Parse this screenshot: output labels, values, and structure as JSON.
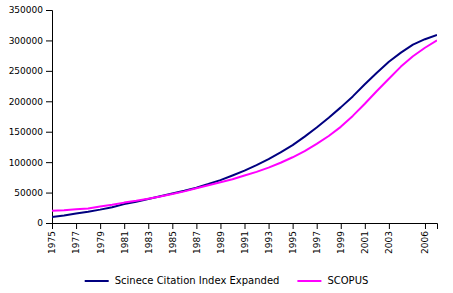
{
  "chart_data": {
    "type": "line",
    "x": [
      1975,
      1976,
      1977,
      1978,
      1979,
      1980,
      1981,
      1982,
      1983,
      1984,
      1985,
      1986,
      1987,
      1988,
      1989,
      1990,
      1991,
      1992,
      1993,
      1994,
      1995,
      1996,
      1997,
      1998,
      1999,
      2000,
      2001,
      2002,
      2003,
      2004,
      2005,
      2006,
      2007
    ],
    "series": [
      {
        "name": "Scinece Citation Index Expanded",
        "color": "#000080",
        "values": [
          10000,
          12500,
          15500,
          18500,
          22000,
          26000,
          31000,
          35000,
          39500,
          44000,
          48500,
          53000,
          58000,
          64000,
          70500,
          78000,
          86000,
          95000,
          105000,
          116000,
          128000,
          142000,
          157000,
          173000,
          190000,
          208000,
          228000,
          247000,
          265000,
          280000,
          293000,
          302000,
          309000
        ]
      },
      {
        "name": "SCOPUS",
        "color": "#FF00FF",
        "values": [
          20000,
          21000,
          22500,
          24000,
          27000,
          30000,
          33500,
          36500,
          40000,
          43500,
          47500,
          52000,
          57000,
          62000,
          67000,
          72000,
          78000,
          84000,
          91000,
          99000,
          108000,
          118000,
          130000,
          143000,
          158000,
          176000,
          196000,
          217000,
          237000,
          257000,
          274000,
          288000,
          300000
        ]
      }
    ],
    "xlim": [
      1975,
      2007
    ],
    "xticks": [
      1975,
      1977,
      1979,
      1981,
      1983,
      1985,
      1987,
      1989,
      1991,
      1993,
      1995,
      1997,
      1999,
      2001,
      2003,
      2006
    ],
    "ylim": [
      0,
      350000
    ],
    "yticks": [
      0,
      50000,
      100000,
      150000,
      200000,
      250000,
      300000,
      350000
    ],
    "grid": false,
    "legend": "bottom"
  }
}
